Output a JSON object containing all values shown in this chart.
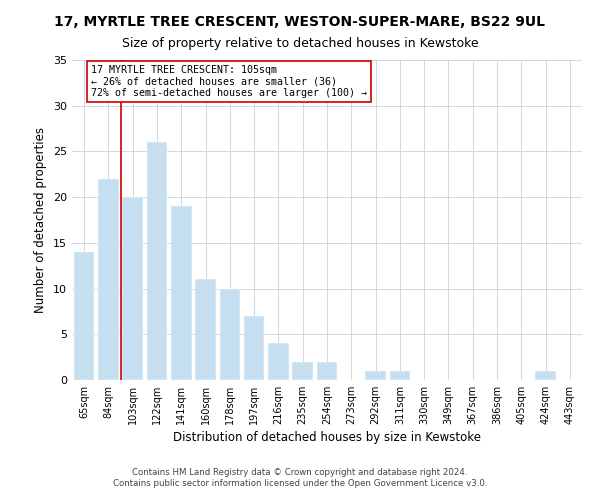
{
  "title": "17, MYRTLE TREE CRESCENT, WESTON-SUPER-MARE, BS22 9UL",
  "subtitle": "Size of property relative to detached houses in Kewstoke",
  "xlabel": "Distribution of detached houses by size in Kewstoke",
  "ylabel": "Number of detached properties",
  "bar_color": "#c5dff0",
  "bins": [
    "65sqm",
    "84sqm",
    "103sqm",
    "122sqm",
    "141sqm",
    "160sqm",
    "178sqm",
    "197sqm",
    "216sqm",
    "235sqm",
    "254sqm",
    "273sqm",
    "292sqm",
    "311sqm",
    "330sqm",
    "349sqm",
    "367sqm",
    "386sqm",
    "405sqm",
    "424sqm",
    "443sqm"
  ],
  "values": [
    14,
    22,
    20,
    26,
    19,
    11,
    10,
    7,
    4,
    2,
    2,
    0,
    1,
    1,
    0,
    0,
    0,
    0,
    0,
    1,
    0
  ],
  "ylim": [
    0,
    35
  ],
  "yticks": [
    0,
    5,
    10,
    15,
    20,
    25,
    30,
    35
  ],
  "vline_bin_index": 2,
  "vline_color": "#cc0000",
  "annotation_title": "17 MYRTLE TREE CRESCENT: 105sqm",
  "annotation_line1": "← 26% of detached houses are smaller (36)",
  "annotation_line2": "72% of semi-detached houses are larger (100) →",
  "annotation_box_edgecolor": "#cc0000",
  "footer1": "Contains HM Land Registry data © Crown copyright and database right 2024.",
  "footer2": "Contains public sector information licensed under the Open Government Licence v3.0."
}
